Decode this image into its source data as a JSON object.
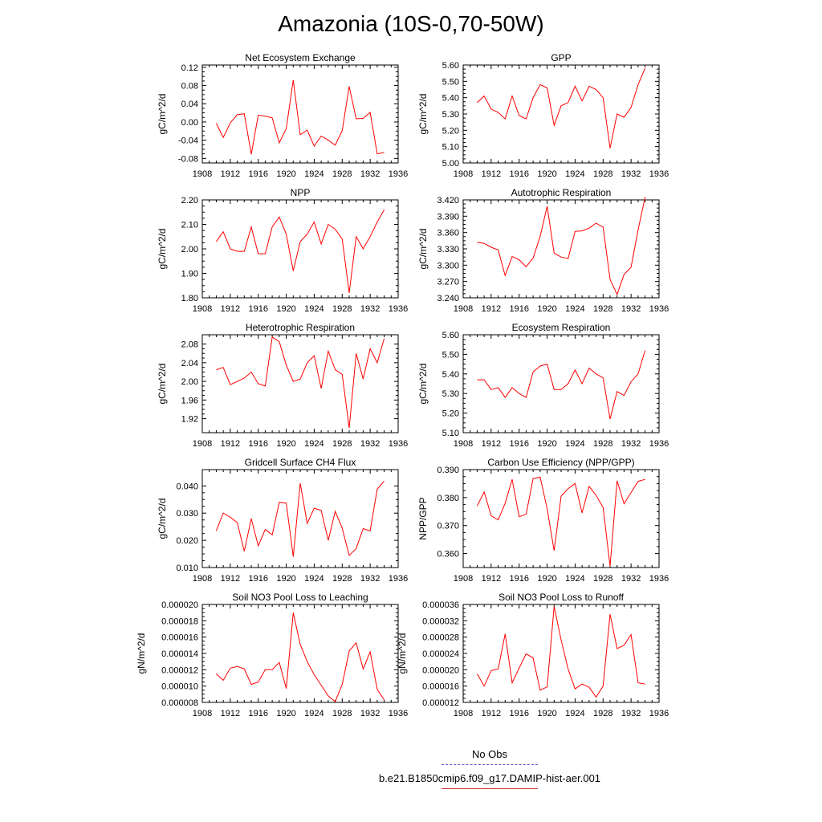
{
  "title": "Amazonia (10S-0,70-50W)",
  "legend": {
    "entries": [
      {
        "label": "No Obs",
        "color": "#6060d8",
        "dash": true
      },
      {
        "label": "b.e21.B1850cmip6.f09_g17.DAMIP-hist-aer.001",
        "color": "#d83030",
        "dash": false
      }
    ]
  },
  "chart_data": [
    {
      "type": "line",
      "title": "Net Ecosystem Exchange",
      "ylabel": "gC/m^2/d",
      "xlim": [
        1908,
        1936
      ],
      "x_ticks": [
        1908,
        1912,
        1916,
        1920,
        1924,
        1928,
        1932,
        1936
      ],
      "ylim": [
        -0.09,
        0.125
      ],
      "y_ticks": [
        -0.08,
        -0.04,
        0.0,
        0.04,
        0.08,
        0.12
      ],
      "y_tick_labels": [
        "-0.08",
        "-0.04",
        "0.00",
        "0.04",
        "0.08",
        "0.12"
      ],
      "series": [
        {
          "color": "#ff0000",
          "x": [
            1910,
            1911,
            1912,
            1913,
            1914,
            1915,
            1916,
            1917,
            1918,
            1919,
            1920,
            1921,
            1922,
            1923,
            1924,
            1925,
            1926,
            1927,
            1928,
            1929,
            1930,
            1931,
            1932,
            1933,
            1934
          ],
          "values": [
            -0.003,
            -0.034,
            -0.002,
            0.016,
            0.018,
            -0.071,
            0.015,
            0.013,
            0.009,
            -0.046,
            -0.015,
            0.092,
            -0.028,
            -0.018,
            -0.053,
            -0.031,
            -0.04,
            -0.051,
            -0.019,
            0.078,
            0.007,
            0.008,
            0.021,
            -0.07,
            -0.067
          ]
        }
      ]
    },
    {
      "type": "line",
      "title": "GPP",
      "ylabel": "gC/m^2/d",
      "xlim": [
        1908,
        1936
      ],
      "x_ticks": [
        1908,
        1912,
        1916,
        1920,
        1924,
        1928,
        1932,
        1936
      ],
      "ylim": [
        5.0,
        5.6
      ],
      "y_ticks": [
        5.0,
        5.1,
        5.2,
        5.3,
        5.4,
        5.5,
        5.6
      ],
      "y_tick_labels": [
        "5.00",
        "5.10",
        "5.20",
        "5.30",
        "5.40",
        "5.50",
        "5.60"
      ],
      "series": [
        {
          "color": "#ff0000",
          "x": [
            1910,
            1911,
            1912,
            1913,
            1914,
            1915,
            1916,
            1917,
            1918,
            1919,
            1920,
            1921,
            1922,
            1923,
            1924,
            1925,
            1926,
            1927,
            1928,
            1929,
            1930,
            1931,
            1932,
            1933,
            1934
          ],
          "values": [
            5.37,
            5.41,
            5.33,
            5.31,
            5.27,
            5.41,
            5.29,
            5.27,
            5.4,
            5.48,
            5.46,
            5.23,
            5.35,
            5.37,
            5.47,
            5.38,
            5.47,
            5.45,
            5.4,
            5.09,
            5.3,
            5.28,
            5.34,
            5.48,
            5.58
          ]
        }
      ]
    },
    {
      "type": "line",
      "title": "NPP",
      "ylabel": "gC/m^2/d",
      "xlim": [
        1908,
        1936
      ],
      "x_ticks": [
        1908,
        1912,
        1916,
        1920,
        1924,
        1928,
        1932,
        1936
      ],
      "ylim": [
        1.8,
        2.2
      ],
      "y_ticks": [
        1.8,
        1.9,
        2.0,
        2.1,
        2.2
      ],
      "y_tick_labels": [
        "1.80",
        "1.90",
        "2.00",
        "2.10",
        "2.20"
      ],
      "series": [
        {
          "color": "#ff0000",
          "x": [
            1910,
            1911,
            1912,
            1913,
            1914,
            1915,
            1916,
            1917,
            1918,
            1919,
            1920,
            1921,
            1922,
            1923,
            1924,
            1925,
            1926,
            1927,
            1928,
            1929,
            1930,
            1931,
            1932,
            1933,
            1934
          ],
          "values": [
            2.03,
            2.07,
            2.0,
            1.99,
            1.99,
            2.09,
            1.98,
            1.98,
            2.09,
            2.13,
            2.06,
            1.91,
            2.03,
            2.06,
            2.11,
            2.02,
            2.1,
            2.08,
            2.04,
            1.82,
            2.05,
            2.0,
            2.05,
            2.11,
            2.16
          ]
        }
      ]
    },
    {
      "type": "line",
      "title": "Autotrophic Respiration",
      "ylabel": "gC/m^2/d",
      "xlim": [
        1908,
        1936
      ],
      "x_ticks": [
        1908,
        1912,
        1916,
        1920,
        1924,
        1928,
        1932,
        1936
      ],
      "ylim": [
        3.24,
        3.42
      ],
      "y_ticks": [
        3.24,
        3.27,
        3.3,
        3.33,
        3.36,
        3.39,
        3.42
      ],
      "y_tick_labels": [
        "3.240",
        "3.270",
        "3.300",
        "3.330",
        "3.360",
        "3.390",
        "3.420"
      ],
      "series": [
        {
          "color": "#ff0000",
          "x": [
            1910,
            1911,
            1912,
            1913,
            1914,
            1915,
            1916,
            1917,
            1918,
            1919,
            1920,
            1921,
            1922,
            1923,
            1924,
            1925,
            1926,
            1927,
            1928,
            1929,
            1930,
            1931,
            1932,
            1933,
            1934
          ],
          "values": [
            3.342,
            3.34,
            3.333,
            3.328,
            3.281,
            3.316,
            3.31,
            3.297,
            3.313,
            3.353,
            3.408,
            3.322,
            3.315,
            3.312,
            3.362,
            3.363,
            3.368,
            3.377,
            3.37,
            3.274,
            3.246,
            3.283,
            3.296,
            3.365,
            3.425
          ]
        }
      ]
    },
    {
      "type": "line",
      "title": "Heterotrophic Respiration",
      "ylabel": "gC/m^2/d",
      "xlim": [
        1908,
        1936
      ],
      "x_ticks": [
        1908,
        1912,
        1916,
        1920,
        1924,
        1928,
        1932,
        1936
      ],
      "ylim": [
        1.89,
        2.1
      ],
      "y_ticks": [
        1.92,
        1.96,
        2.0,
        2.04,
        2.08
      ],
      "y_tick_labels": [
        "1.92",
        "1.96",
        "2.00",
        "2.04",
        "2.08"
      ],
      "series": [
        {
          "color": "#ff0000",
          "x": [
            1910,
            1911,
            1912,
            1913,
            1914,
            1915,
            1916,
            1917,
            1918,
            1919,
            1920,
            1921,
            1922,
            1923,
            1924,
            1925,
            1926,
            1927,
            1928,
            1929,
            1930,
            1931,
            1932,
            1933,
            1934
          ],
          "values": [
            2.025,
            2.03,
            1.993,
            2.0,
            2.007,
            2.02,
            1.995,
            1.99,
            2.095,
            2.085,
            2.035,
            2.0,
            2.005,
            2.04,
            2.055,
            1.985,
            2.065,
            2.025,
            2.015,
            1.9,
            2.06,
            2.005,
            2.07,
            2.04,
            2.092
          ]
        }
      ]
    },
    {
      "type": "line",
      "title": "Ecosystem Respiration",
      "ylabel": "gC/m^2/d",
      "xlim": [
        1908,
        1936
      ],
      "x_ticks": [
        1908,
        1912,
        1916,
        1920,
        1924,
        1928,
        1932,
        1936
      ],
      "ylim": [
        5.1,
        5.6
      ],
      "y_ticks": [
        5.1,
        5.2,
        5.3,
        5.4,
        5.5,
        5.6
      ],
      "y_tick_labels": [
        "5.10",
        "5.20",
        "5.30",
        "5.40",
        "5.50",
        "5.60"
      ],
      "series": [
        {
          "color": "#ff0000",
          "x": [
            1910,
            1911,
            1912,
            1913,
            1914,
            1915,
            1916,
            1917,
            1918,
            1919,
            1920,
            1921,
            1922,
            1923,
            1924,
            1925,
            1926,
            1927,
            1928,
            1929,
            1930,
            1931,
            1932,
            1933,
            1934
          ],
          "values": [
            5.37,
            5.37,
            5.32,
            5.33,
            5.28,
            5.33,
            5.3,
            5.28,
            5.41,
            5.44,
            5.45,
            5.32,
            5.32,
            5.35,
            5.42,
            5.35,
            5.43,
            5.4,
            5.38,
            5.17,
            5.31,
            5.29,
            5.36,
            5.4,
            5.52
          ]
        }
      ]
    },
    {
      "type": "line",
      "title": "Gridcell Surface CH4 Flux",
      "ylabel": "gC/m^2/d",
      "xlim": [
        1908,
        1936
      ],
      "x_ticks": [
        1908,
        1912,
        1916,
        1920,
        1924,
        1928,
        1932,
        1936
      ],
      "ylim": [
        0.01,
        0.046
      ],
      "y_ticks": [
        0.01,
        0.02,
        0.03,
        0.04
      ],
      "y_tick_labels": [
        "0.010",
        "0.020",
        "0.030",
        "0.040"
      ],
      "series": [
        {
          "color": "#ff0000",
          "x": [
            1910,
            1911,
            1912,
            1913,
            1914,
            1915,
            1916,
            1917,
            1918,
            1919,
            1920,
            1921,
            1922,
            1923,
            1924,
            1925,
            1926,
            1927,
            1928,
            1929,
            1930,
            1931,
            1932,
            1933,
            1934
          ],
          "values": [
            0.0235,
            0.03,
            0.0285,
            0.0265,
            0.016,
            0.028,
            0.018,
            0.024,
            0.022,
            0.034,
            0.0337,
            0.014,
            0.041,
            0.0262,
            0.0318,
            0.031,
            0.02,
            0.0307,
            0.0245,
            0.0145,
            0.017,
            0.0243,
            0.0235,
            0.0388,
            0.0418
          ]
        }
      ]
    },
    {
      "type": "line",
      "title": "Carbon Use Efficiency (NPP/GPP)",
      "ylabel": "NPP/GPP",
      "xlim": [
        1908,
        1936
      ],
      "x_ticks": [
        1908,
        1912,
        1916,
        1920,
        1924,
        1928,
        1932,
        1936
      ],
      "ylim": [
        0.355,
        0.39
      ],
      "y_ticks": [
        0.36,
        0.37,
        0.38,
        0.39
      ],
      "y_tick_labels": [
        "0.360",
        "0.370",
        "0.380",
        "0.390"
      ],
      "series": [
        {
          "color": "#ff0000",
          "x": [
            1910,
            1911,
            1912,
            1913,
            1914,
            1915,
            1916,
            1917,
            1918,
            1919,
            1920,
            1921,
            1922,
            1923,
            1924,
            1925,
            1926,
            1927,
            1928,
            1929,
            1930,
            1931,
            1932,
            1933,
            1934
          ],
          "values": [
            0.377,
            0.382,
            0.3735,
            0.372,
            0.378,
            0.3865,
            0.3732,
            0.374,
            0.3868,
            0.3873,
            0.376,
            0.361,
            0.3805,
            0.3832,
            0.385,
            0.3745,
            0.384,
            0.3808,
            0.3765,
            0.3555,
            0.386,
            0.3778,
            0.3818,
            0.3858,
            0.3865
          ]
        }
      ]
    },
    {
      "type": "line",
      "title": "Soil NO3 Pool Loss to Leaching",
      "ylabel": "gN/m^2/d",
      "xlim": [
        1908,
        1936
      ],
      "x_ticks": [
        1908,
        1912,
        1916,
        1920,
        1924,
        1928,
        1932,
        1936
      ],
      "ylim": [
        8e-06,
        2e-05
      ],
      "y_ticks": [
        8e-06,
        1e-05,
        1.2e-05,
        1.4e-05,
        1.6e-05,
        1.8e-05,
        2e-05
      ],
      "y_tick_labels": [
        "0.000008",
        "0.000010",
        "0.000012",
        "0.000014",
        "0.000016",
        "0.000018",
        "0.000020"
      ],
      "series": [
        {
          "color": "#ff0000",
          "x": [
            1910,
            1911,
            1912,
            1913,
            1914,
            1915,
            1916,
            1917,
            1918,
            1919,
            1920,
            1921,
            1922,
            1923,
            1924,
            1925,
            1926,
            1927,
            1928,
            1929,
            1930,
            1931,
            1932,
            1933,
            1934
          ],
          "values": [
            1.15e-05,
            1.07e-05,
            1.22e-05,
            1.24e-05,
            1.21e-05,
            1.02e-05,
            1.05e-05,
            1.2e-05,
            1.2e-05,
            1.29e-05,
            9.7e-06,
            1.9e-05,
            1.51e-05,
            1.3e-05,
            1.14e-05,
            1.01e-05,
            8.8e-06,
            8.1e-06,
            1.02e-05,
            1.43e-05,
            1.53e-05,
            1.21e-05,
            1.42e-05,
            9.6e-06,
            8.3e-06
          ]
        }
      ]
    },
    {
      "type": "line",
      "title": "Soil NO3 Pool Loss to Runoff",
      "ylabel": "gN/m^2/d",
      "xlim": [
        1908,
        1936
      ],
      "x_ticks": [
        1908,
        1912,
        1916,
        1920,
        1924,
        1928,
        1932,
        1936
      ],
      "ylim": [
        1.2e-05,
        3.6e-05
      ],
      "y_ticks": [
        1.2e-05,
        1.6e-05,
        2e-05,
        2.4e-05,
        2.8e-05,
        3.2e-05,
        3.6e-05
      ],
      "y_tick_labels": [
        "0.000012",
        "0.000016",
        "0.000020",
        "0.000024",
        "0.000028",
        "0.000032",
        "0.000036"
      ],
      "series": [
        {
          "color": "#ff0000",
          "x": [
            1910,
            1911,
            1912,
            1913,
            1914,
            1915,
            1916,
            1917,
            1918,
            1919,
            1920,
            1921,
            1922,
            1923,
            1924,
            1925,
            1926,
            1927,
            1928,
            1929,
            1930,
            1931,
            1932,
            1933,
            1934
          ],
          "values": [
            1.9e-05,
            1.6e-05,
            1.98e-05,
            2.02e-05,
            2.88e-05,
            1.68e-05,
            2.04e-05,
            2.39e-05,
            2.29e-05,
            1.5e-05,
            1.58e-05,
            3.55e-05,
            2.73e-05,
            2.02e-05,
            1.53e-05,
            1.65e-05,
            1.57e-05,
            1.33e-05,
            1.6e-05,
            3.36e-05,
            2.52e-05,
            2.6e-05,
            2.86e-05,
            1.68e-05,
            1.65e-05
          ]
        }
      ]
    }
  ]
}
